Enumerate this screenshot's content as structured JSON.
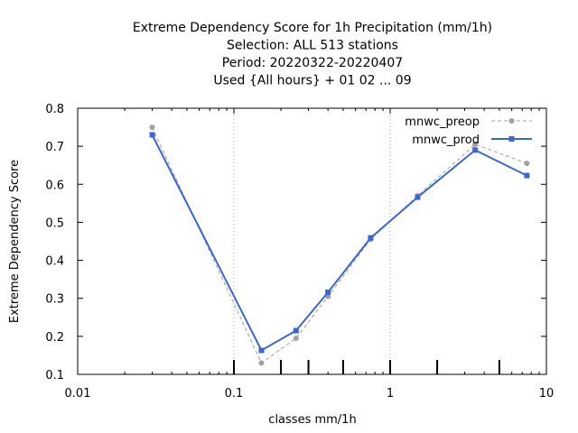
{
  "chart_data": {
    "type": "line",
    "title_lines": [
      "Extreme Dependency Score  for 1h Precipitation (mm/1h)",
      "Selection: ALL    513 stations",
      "Period: 20220322-20220407",
      "Used {All hours} + 01 02 ... 09"
    ],
    "xlabel": "classes mm/1h",
    "ylabel": "Extreme Dependency Score",
    "x_scale": "log",
    "xlim": [
      0.01,
      10
    ],
    "ylim": [
      0.1,
      0.8
    ],
    "x_ticks": [
      {
        "value": 0.01,
        "label": "0.01"
      },
      {
        "value": 0.1,
        "label": "0.1"
      },
      {
        "value": 1,
        "label": "1"
      },
      {
        "value": 10,
        "label": "10"
      }
    ],
    "y_ticks": [
      {
        "value": 0.1,
        "label": "0.1"
      },
      {
        "value": 0.2,
        "label": "0.2"
      },
      {
        "value": 0.3,
        "label": "0.3"
      },
      {
        "value": 0.4,
        "label": "0.4"
      },
      {
        "value": 0.5,
        "label": "0.5"
      },
      {
        "value": 0.6,
        "label": "0.6"
      },
      {
        "value": 0.7,
        "label": "0.7"
      },
      {
        "value": 0.8,
        "label": "0.8"
      }
    ],
    "class_boundaries": [
      0.1,
      0.2,
      0.3,
      0.5,
      1,
      2,
      5
    ],
    "grid": "vertical dotted at decades",
    "legend_position": "top-right",
    "series": [
      {
        "name": "mnwc_preop",
        "color": "#a0a0a0",
        "dash": true,
        "marker": "circle",
        "x": [
          0.03,
          0.15,
          0.25,
          0.4,
          0.75,
          1.5,
          3.5,
          7.5
        ],
        "y": [
          0.75,
          0.13,
          0.195,
          0.305,
          0.455,
          0.57,
          0.705,
          0.655
        ]
      },
      {
        "name": "mnwc_prod",
        "color": "#3a66d1",
        "dash": false,
        "marker": "square",
        "x": [
          0.03,
          0.15,
          0.25,
          0.4,
          0.75,
          1.5,
          3.5,
          7.5
        ],
        "y": [
          0.73,
          0.163,
          0.215,
          0.316,
          0.459,
          0.566,
          0.69,
          0.623
        ]
      }
    ]
  }
}
